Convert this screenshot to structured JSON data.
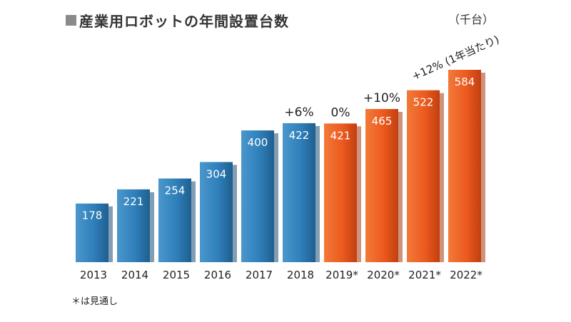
{
  "chart_data": {
    "type": "bar",
    "title": "産業用ロボットの年間設置台数",
    "unit": "（千台）",
    "footnote": "＊は見通し",
    "categories": [
      "2013",
      "2014",
      "2015",
      "2016",
      "2017",
      "2018",
      "2019*",
      "2020*",
      "2021*",
      "2022*"
    ],
    "values": [
      178,
      221,
      254,
      304,
      400,
      422,
      421,
      465,
      522,
      584
    ],
    "value_labels": [
      "178",
      "221",
      "254",
      "304",
      "400",
      "422",
      "421",
      "465",
      "522",
      "584"
    ],
    "forecast": [
      false,
      false,
      false,
      false,
      false,
      false,
      true,
      true,
      true,
      true
    ],
    "growth_annotations": [
      {
        "category": "2018",
        "text": "+6%"
      },
      {
        "category": "2019*",
        "text": "0%"
      },
      {
        "category": "2020*",
        "text": "+10%"
      }
    ],
    "slanted_annotation": "+12% (1年当たり)",
    "ylim": [
      0,
      600
    ],
    "grid": false,
    "colors": {
      "actual": "#2f7fba",
      "forecast": "#ee5a1e",
      "title_mark": "#8a8a8a"
    }
  }
}
